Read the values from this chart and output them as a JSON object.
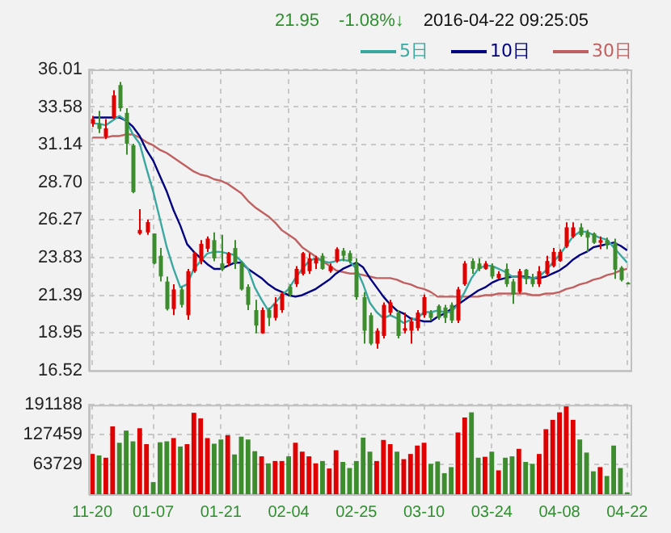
{
  "chart_data": [
    {
      "type": "candlestick",
      "annotations": [
        "21.95",
        "-1.08%↓",
        "2016-04-22 09:25:05"
      ],
      "categories": [
        null,
        null,
        null,
        null,
        null,
        null,
        null,
        null,
        null,
        null,
        null,
        null,
        null,
        null,
        null,
        null,
        null,
        null,
        null,
        null,
        null,
        null,
        null,
        null,
        null,
        null,
        null,
        null,
        null,
        null,
        null,
        null,
        null,
        null,
        null,
        null,
        null,
        null,
        null,
        null,
        null,
        null,
        null,
        null,
        null,
        null,
        null,
        null,
        null,
        null,
        null,
        null,
        null,
        null,
        null,
        null,
        null,
        null,
        null,
        null,
        null,
        null,
        null,
        null,
        null,
        null,
        null,
        null,
        null,
        null,
        null,
        null,
        null,
        null,
        null,
        null,
        null,
        null,
        null,
        null
      ],
      "ohlc": [
        [
          32.5,
          33.0,
          32.3,
          32.8
        ],
        [
          32.49,
          33.33,
          31.89,
          32.16
        ],
        [
          31.65,
          32.8,
          31.5,
          32.2
        ],
        [
          32.9,
          34.67,
          32.8,
          34.33
        ],
        [
          35.0,
          35.2,
          33.3,
          33.5
        ],
        [
          33.2,
          33.5,
          30.5,
          31.2
        ],
        [
          31.1,
          31.2,
          28.0,
          28.07
        ],
        [
          25.39,
          26.97,
          25.3,
          25.62
        ],
        [
          25.46,
          26.3,
          25.3,
          26.13
        ],
        [
          25.39,
          25.4,
          23.4,
          23.45
        ],
        [
          23.95,
          24.45,
          22.28,
          22.61
        ],
        [
          22.28,
          22.6,
          20.4,
          20.5
        ],
        [
          20.5,
          22.1,
          20.1,
          21.77
        ],
        [
          21.77,
          21.94,
          20.6,
          20.77
        ],
        [
          20.1,
          23.1,
          19.8,
          22.95
        ],
        [
          22.95,
          24.2,
          22.85,
          24.12
        ],
        [
          23.6,
          24.96,
          23.4,
          24.72
        ],
        [
          24.4,
          25.2,
          24.2,
          25.06
        ],
        [
          24.96,
          25.46,
          23.6,
          23.78
        ],
        [
          23.45,
          25.3,
          22.95,
          23.05
        ],
        [
          23.45,
          24.2,
          23.3,
          24.12
        ],
        [
          24.45,
          24.96,
          23.1,
          23.45
        ],
        [
          23.5,
          23.6,
          21.7,
          21.77
        ],
        [
          21.94,
          22.1,
          20.43,
          20.77
        ],
        [
          20.43,
          21.1,
          18.93,
          19.43
        ],
        [
          18.93,
          20.6,
          18.9,
          20.43
        ],
        [
          20.43,
          20.6,
          19.4,
          19.93
        ],
        [
          19.93,
          21.27,
          19.76,
          20.83
        ],
        [
          20.43,
          21.6,
          20.26,
          21.5
        ],
        [
          21.94,
          22.1,
          21.3,
          21.44
        ],
        [
          22.11,
          23.28,
          21.94,
          23.1
        ],
        [
          22.78,
          24.2,
          22.68,
          24.12
        ],
        [
          22.95,
          24.12,
          22.78,
          23.78
        ],
        [
          23.45,
          23.95,
          23.1,
          23.78
        ],
        [
          23.95,
          24.12,
          23.05,
          23.1
        ],
        [
          22.95,
          23.45,
          22.85,
          23.28
        ],
        [
          23.61,
          24.5,
          23.5,
          24.38
        ],
        [
          24.28,
          24.45,
          23.6,
          23.95
        ],
        [
          24.12,
          24.28,
          23.45,
          23.61
        ],
        [
          23.45,
          23.78,
          21.1,
          21.27
        ],
        [
          21.27,
          21.6,
          18.26,
          19.1
        ],
        [
          20.1,
          20.26,
          18.16,
          18.26
        ],
        [
          18.26,
          19.26,
          17.93,
          19.1
        ],
        [
          18.76,
          20.93,
          18.6,
          20.77
        ],
        [
          20.27,
          21.1,
          20.1,
          20.93
        ],
        [
          20.27,
          20.43,
          18.6,
          18.76
        ],
        [
          19.1,
          20.27,
          18.93,
          19.26
        ],
        [
          19.1,
          19.93,
          18.26,
          19.7
        ],
        [
          19.26,
          20.43,
          19.1,
          20.27
        ],
        [
          20.1,
          21.44,
          19.93,
          21.27
        ],
        [
          20.27,
          20.43,
          19.76,
          19.93
        ],
        [
          20.7,
          20.8,
          19.8,
          19.93
        ],
        [
          20.6,
          20.77,
          19.6,
          19.93
        ],
        [
          20.77,
          20.93,
          19.6,
          19.76
        ],
        [
          19.76,
          21.94,
          19.6,
          21.77
        ],
        [
          22.1,
          23.61,
          22.0,
          23.45
        ],
        [
          23.61,
          23.78,
          22.78,
          23.1
        ],
        [
          23.45,
          23.78,
          22.95,
          23.1
        ],
        [
          23.1,
          23.61,
          23.05,
          23.45
        ],
        [
          23.28,
          23.45,
          22.45,
          22.61
        ],
        [
          22.5,
          22.95,
          22.45,
          22.78
        ],
        [
          23.1,
          23.45,
          21.94,
          22.11
        ],
        [
          22.28,
          22.45,
          20.83,
          21.44
        ],
        [
          21.6,
          23.1,
          21.5,
          22.95
        ],
        [
          23.05,
          23.1,
          22.11,
          22.45
        ],
        [
          22.45,
          22.78,
          21.94,
          22.11
        ],
        [
          22.11,
          23.28,
          21.94,
          22.95
        ],
        [
          22.78,
          23.95,
          22.68,
          23.61
        ],
        [
          23.28,
          24.45,
          23.2,
          24.2
        ],
        [
          23.61,
          24.38,
          23.55,
          24.2
        ],
        [
          24.55,
          26.12,
          24.45,
          25.79
        ],
        [
          25.19,
          26.12,
          25.1,
          25.79
        ],
        [
          25.79,
          26.05,
          25.19,
          25.29
        ],
        [
          25.46,
          25.63,
          24.2,
          25.12
        ],
        [
          25.39,
          25.46,
          24.72,
          24.79
        ],
        [
          24.79,
          25.2,
          24.38,
          24.96
        ],
        [
          24.96,
          25.12,
          24.38,
          24.62
        ],
        [
          24.79,
          25.06,
          22.45,
          23.05
        ],
        [
          23.18,
          23.28,
          22.28,
          22.38
        ],
        [
          22.2,
          22.25,
          22.1,
          22.15
        ]
      ],
      "colors": [
        "#e00000",
        "#3d8c2e",
        "#e00000",
        "#e00000",
        "#3d8c2e",
        "#3d8c2e",
        "#3d8c2e",
        "#e00000",
        "#e00000",
        "#3d8c2e",
        "#3d8c2e",
        "#3d8c2e",
        "#e00000",
        "#3d8c2e",
        "#e00000",
        "#e00000",
        "#e00000",
        "#e00000",
        "#3d8c2e",
        "#3d8c2e",
        "#e00000",
        "#3d8c2e",
        "#3d8c2e",
        "#3d8c2e",
        "#3d8c2e",
        "#e00000",
        "#3d8c2e",
        "#e00000",
        "#e00000",
        "#3d8c2e",
        "#e00000",
        "#e00000",
        "#e00000",
        "#e00000",
        "#3d8c2e",
        "#e00000",
        "#e00000",
        "#3d8c2e",
        "#3d8c2e",
        "#3d8c2e",
        "#3d8c2e",
        "#3d8c2e",
        "#e00000",
        "#e00000",
        "#e00000",
        "#3d8c2e",
        "#e00000",
        "#e00000",
        "#e00000",
        "#e00000",
        "#3d8c2e",
        "#3d8c2e",
        "#3d8c2e",
        "#3d8c2e",
        "#e00000",
        "#e00000",
        "#3d8c2e",
        "#3d8c2e",
        "#e00000",
        "#3d8c2e",
        "#e00000",
        "#3d8c2e",
        "#3d8c2e",
        "#e00000",
        "#3d8c2e",
        "#3d8c2e",
        "#e00000",
        "#e00000",
        "#e00000",
        "#e00000",
        "#e00000",
        "#e00000",
        "#3d8c2e",
        "#3d8c2e",
        "#3d8c2e",
        "#e00000",
        "#3d8c2e",
        "#3d8c2e",
        "#3d8c2e",
        "#3d8c2e"
      ],
      "series": [
        {
          "name": "5日",
          "type": "line",
          "color": "#3aa8a0",
          "values": [
            32.5,
            32.5,
            32.4,
            32.7,
            33.0,
            32.7,
            31.8,
            31.2,
            29.6,
            28.1,
            26.3,
            24.5,
            23.1,
            21.9,
            22.1,
            23.1,
            23.6,
            24.1,
            24.2,
            24.2,
            24.1,
            24.0,
            23.6,
            23.1,
            21.9,
            21.1,
            20.4,
            20.9,
            21.4,
            21.8,
            22.5,
            23.1,
            23.6,
            23.8,
            23.6,
            23.5,
            23.6,
            23.7,
            23.6,
            23.1,
            22.1,
            20.9,
            20.3,
            19.9,
            20.1,
            19.9,
            19.6,
            19.8,
            19.9,
            20.3,
            20.3,
            20.4,
            20.3,
            20.3,
            20.8,
            21.6,
            22.5,
            23.1,
            23.3,
            23.3,
            23.1,
            22.9,
            22.6,
            22.6,
            22.5,
            22.5,
            22.6,
            23.0,
            23.5,
            24.0,
            24.6,
            25.2,
            25.5,
            25.5,
            25.3,
            25.1,
            25.0,
            24.5,
            24.0,
            23.5
          ]
        },
        {
          "name": "10日",
          "type": "line",
          "color": "#000080",
          "values": [
            32.9,
            32.9,
            32.9,
            32.9,
            32.9,
            32.7,
            32.3,
            31.7,
            30.8,
            30.1,
            29.1,
            28.1,
            26.9,
            25.9,
            24.7,
            24.2,
            23.8,
            23.4,
            23.1,
            23.1,
            23.3,
            23.5,
            23.5,
            23.1,
            22.8,
            22.5,
            22.1,
            21.8,
            21.6,
            21.4,
            21.3,
            21.4,
            21.6,
            21.8,
            22.1,
            22.4,
            22.8,
            23.1,
            23.3,
            23.5,
            23.2,
            22.5,
            21.9,
            21.3,
            20.8,
            20.4,
            20.2,
            19.9,
            19.8,
            19.7,
            19.7,
            20.0,
            20.2,
            20.5,
            20.8,
            21.1,
            21.4,
            21.7,
            21.9,
            22.2,
            22.4,
            22.5,
            22.6,
            22.6,
            22.6,
            22.5,
            22.5,
            22.6,
            22.8,
            23.0,
            23.3,
            23.7,
            24.0,
            24.2,
            24.5,
            24.6,
            24.7,
            24.8,
            24.6,
            24.3
          ]
        },
        {
          "name": "30日",
          "type": "line",
          "color": "#c06060",
          "values": [
            31.6,
            31.6,
            31.6,
            31.7,
            31.7,
            31.8,
            31.8,
            31.6,
            31.3,
            31.1,
            30.8,
            30.6,
            30.3,
            30.0,
            29.7,
            29.4,
            29.2,
            29.1,
            28.9,
            28.8,
            28.6,
            28.3,
            28.0,
            27.5,
            27.1,
            26.8,
            26.5,
            26.1,
            25.6,
            25.3,
            25.0,
            24.5,
            24.2,
            23.9,
            23.6,
            23.3,
            23.0,
            22.9,
            22.8,
            22.8,
            22.7,
            22.6,
            22.5,
            22.5,
            22.5,
            22.4,
            22.2,
            22.1,
            21.9,
            21.8,
            21.6,
            21.3,
            21.3,
            21.3,
            21.3,
            21.3,
            21.3,
            21.3,
            21.4,
            21.4,
            21.5,
            21.5,
            21.5,
            21.5,
            21.5,
            21.4,
            21.4,
            21.5,
            21.5,
            21.6,
            21.8,
            21.9,
            22.1,
            22.2,
            22.4,
            22.5,
            22.7,
            22.8,
            23.0,
            23.1
          ]
        }
      ],
      "ylim": [
        16.52,
        36.01
      ],
      "yticks": [
        16.52,
        18.95,
        21.39,
        23.83,
        26.27,
        {
          "value": 28.7,
          "label": "28.70"
        },
        31.14,
        33.58,
        36.01
      ],
      "grid": true,
      "legend": "top right",
      "tick_labels": "y",
      "marker": "none"
    },
    {
      "type": "bar",
      "categories": [
        "11-20",
        null,
        null,
        null,
        null,
        null,
        null,
        null,
        null,
        "01-07",
        null,
        null,
        null,
        null,
        null,
        null,
        null,
        null,
        null,
        "01-21",
        null,
        null,
        null,
        null,
        null,
        null,
        null,
        null,
        null,
        "02-04",
        null,
        null,
        null,
        null,
        null,
        null,
        null,
        null,
        null,
        "02-25",
        null,
        null,
        null,
        null,
        null,
        null,
        null,
        null,
        null,
        "03-10",
        null,
        null,
        null,
        null,
        null,
        null,
        null,
        null,
        null,
        "03-24",
        null,
        null,
        null,
        null,
        null,
        null,
        null,
        null,
        null,
        "04-08",
        null,
        null,
        null,
        null,
        null,
        null,
        null,
        null,
        null,
        "04-22"
      ],
      "values": [
        86000,
        83000,
        78000,
        145000,
        110000,
        136000,
        113000,
        141000,
        107000,
        26000,
        111000,
        113000,
        120000,
        102000,
        107000,
        174000,
        162000,
        120000,
        108000,
        117000,
        126000,
        85000,
        123000,
        117000,
        92000,
        81000,
        66000,
        71000,
        71000,
        81000,
        110000,
        91000,
        81000,
        66000,
        71000,
        55000,
        94000,
        69000,
        56000,
        71000,
        121000,
        91000,
        71000,
        116000,
        107000,
        91000,
        75000,
        86000,
        104000,
        110000,
        65000,
        70000,
        45000,
        58000,
        132000,
        164000,
        175000,
        78000,
        80000,
        91000,
        51000,
        78000,
        81000,
        97000,
        69000,
        65000,
        86000,
        139000,
        159000,
        175000,
        190000,
        159000,
        117000,
        89000,
        49000,
        58000,
        39000,
        104000,
        56000,
        4000
      ],
      "colors": [
        "#e00000",
        "#3d8c2e",
        "#e00000",
        "#e00000",
        "#3d8c2e",
        "#3d8c2e",
        "#3d8c2e",
        "#e00000",
        "#e00000",
        "#3d8c2e",
        "#3d8c2e",
        "#3d8c2e",
        "#e00000",
        "#3d8c2e",
        "#e00000",
        "#e00000",
        "#e00000",
        "#e00000",
        "#3d8c2e",
        "#3d8c2e",
        "#e00000",
        "#3d8c2e",
        "#3d8c2e",
        "#3d8c2e",
        "#3d8c2e",
        "#e00000",
        "#3d8c2e",
        "#e00000",
        "#e00000",
        "#3d8c2e",
        "#e00000",
        "#e00000",
        "#e00000",
        "#e00000",
        "#3d8c2e",
        "#e00000",
        "#e00000",
        "#3d8c2e",
        "#3d8c2e",
        "#3d8c2e",
        "#3d8c2e",
        "#3d8c2e",
        "#e00000",
        "#e00000",
        "#e00000",
        "#3d8c2e",
        "#e00000",
        "#e00000",
        "#e00000",
        "#e00000",
        "#3d8c2e",
        "#3d8c2e",
        "#3d8c2e",
        "#3d8c2e",
        "#e00000",
        "#e00000",
        "#3d8c2e",
        "#3d8c2e",
        "#e00000",
        "#3d8c2e",
        "#e00000",
        "#3d8c2e",
        "#3d8c2e",
        "#e00000",
        "#3d8c2e",
        "#3d8c2e",
        "#e00000",
        "#e00000",
        "#e00000",
        "#e00000",
        "#e00000",
        "#e00000",
        "#3d8c2e",
        "#3d8c2e",
        "#3d8c2e",
        "#e00000",
        "#3d8c2e",
        "#3d8c2e",
        "#3d8c2e",
        "#3d8c2e"
      ],
      "ylim": [
        0,
        191188
      ],
      "yticks": [
        63729,
        127459,
        191188
      ],
      "grid": true
    }
  ]
}
